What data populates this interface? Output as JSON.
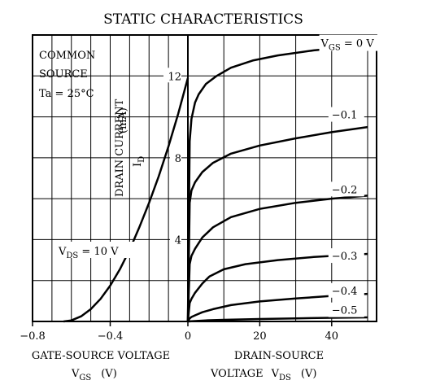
{
  "chart_data": {
    "type": "line",
    "title": "STATIC CHARACTERISTICS",
    "annotation": {
      "line1": "COMMON",
      "line2": "SOURCE",
      "line3": "Ta = 25°C"
    },
    "y_axis": {
      "label_main": "DRAIN CURRENT",
      "label_symbol": "I",
      "label_subscript": "D",
      "label_unit": "(mA)",
      "range": [
        0,
        14
      ],
      "ticks": [
        4,
        8,
        12
      ],
      "grid": true
    },
    "transfer": {
      "x_range": [
        -0.8,
        0
      ],
      "ticks": [
        -0.8,
        -0.4,
        0
      ],
      "tick_labels": [
        "−0.8",
        "−0.4",
        "0"
      ],
      "xlabel_line1": "GATE-SOURCE VOLTAGE",
      "xlabel_symbol": "V",
      "xlabel_subscript": "GS",
      "xlabel_unit": "(V)",
      "condition_prefix": "V",
      "condition_subscript": "DS",
      "condition_value": " = 10 V",
      "x": [
        -0.64,
        -0.6,
        -0.55,
        -0.5,
        -0.45,
        -0.4,
        -0.35,
        -0.3,
        -0.25,
        -0.2,
        -0.15,
        -0.1,
        -0.05,
        0.0
      ],
      "y": [
        0.0,
        0.05,
        0.25,
        0.6,
        1.1,
        1.75,
        2.55,
        3.5,
        4.6,
        5.8,
        7.1,
        8.55,
        10.15,
        11.9
      ]
    },
    "output": {
      "x_range": [
        0,
        50
      ],
      "ticks": [
        0,
        20,
        40
      ],
      "tick_labels": [
        "0",
        "20",
        "40"
      ],
      "xlabel_line1": "DRAIN-SOURCE",
      "xlabel_prefix": "VOLTAGE",
      "xlabel_symbol": "V",
      "xlabel_subscript": "DS",
      "xlabel_unit": "(V)",
      "series": [
        {
          "name": "V",
          "name_sub": "GS",
          "name_rest": " = 0 V",
          "label_x": 37,
          "label_y": 13.5,
          "x": [
            0,
            0.5,
            1,
            2,
            3,
            5,
            8,
            12,
            18,
            25,
            35,
            50
          ],
          "y": [
            0,
            8.8,
            9.9,
            10.7,
            11.1,
            11.6,
            12.0,
            12.4,
            12.75,
            13.0,
            13.25,
            13.5
          ]
        },
        {
          "name": "−0.1",
          "label_x": 40,
          "label_y": 10.0,
          "x": [
            0,
            0.5,
            1,
            2,
            4,
            7,
            12,
            20,
            30,
            40,
            50
          ],
          "y": [
            0,
            5.8,
            6.4,
            6.8,
            7.3,
            7.75,
            8.2,
            8.6,
            8.95,
            9.25,
            9.5
          ]
        },
        {
          "name": "−0.2",
          "label_x": 40,
          "label_y": 6.35,
          "x": [
            0,
            0.5,
            1,
            2,
            4,
            7,
            12,
            20,
            30,
            40,
            50
          ],
          "y": [
            0,
            2.8,
            3.2,
            3.55,
            4.1,
            4.6,
            5.1,
            5.5,
            5.8,
            6.0,
            6.15
          ]
        },
        {
          "name": "−0.3",
          "label_x": 40,
          "label_y": 3.1,
          "x": [
            0,
            0.5,
            1,
            2,
            4,
            6,
            10,
            16,
            25,
            35,
            50
          ],
          "y": [
            0,
            0.9,
            1.1,
            1.4,
            1.85,
            2.2,
            2.55,
            2.8,
            3.0,
            3.15,
            3.3
          ]
        },
        {
          "name": "−0.4",
          "label_x": 40,
          "label_y": 1.4,
          "x": [
            0,
            0.5,
            1,
            2,
            4,
            7,
            12,
            20,
            30,
            40,
            50
          ],
          "y": [
            0,
            0.15,
            0.22,
            0.3,
            0.45,
            0.6,
            0.8,
            0.98,
            1.12,
            1.25,
            1.35
          ]
        },
        {
          "name": "−0.5",
          "label_x": 40,
          "label_y": 0.45,
          "x": [
            0,
            2,
            5,
            10,
            20,
            30,
            40,
            50
          ],
          "y": [
            0,
            0.02,
            0.05,
            0.08,
            0.12,
            0.15,
            0.18,
            0.2
          ]
        }
      ]
    }
  }
}
